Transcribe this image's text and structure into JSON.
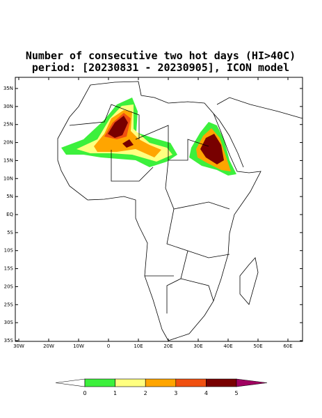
{
  "title": [
    "Number of consecutive two hot days (HI>40C)",
    "period: [20230831 - 20230905], ICON model"
  ],
  "lat_ticks": [
    "35N",
    "30N",
    "25N",
    "20N",
    "15N",
    "10N",
    "5N",
    "EQ",
    "5S",
    "10S",
    "15S",
    "20S",
    "25S",
    "30S",
    "35S"
  ],
  "lon_ticks": [
    "30W",
    "20W",
    "10W",
    "0",
    "10E",
    "20E",
    "30E",
    "40E",
    "50E",
    "60E"
  ],
  "colorbar": {
    "labels": [
      "0",
      "1",
      "2",
      "3",
      "4",
      "5"
    ],
    "colors": [
      "#ffffff",
      "#3cf03c",
      "#ffff80",
      "#ffa500",
      "#f05010",
      "#780000",
      "#a00060"
    ]
  }
}
